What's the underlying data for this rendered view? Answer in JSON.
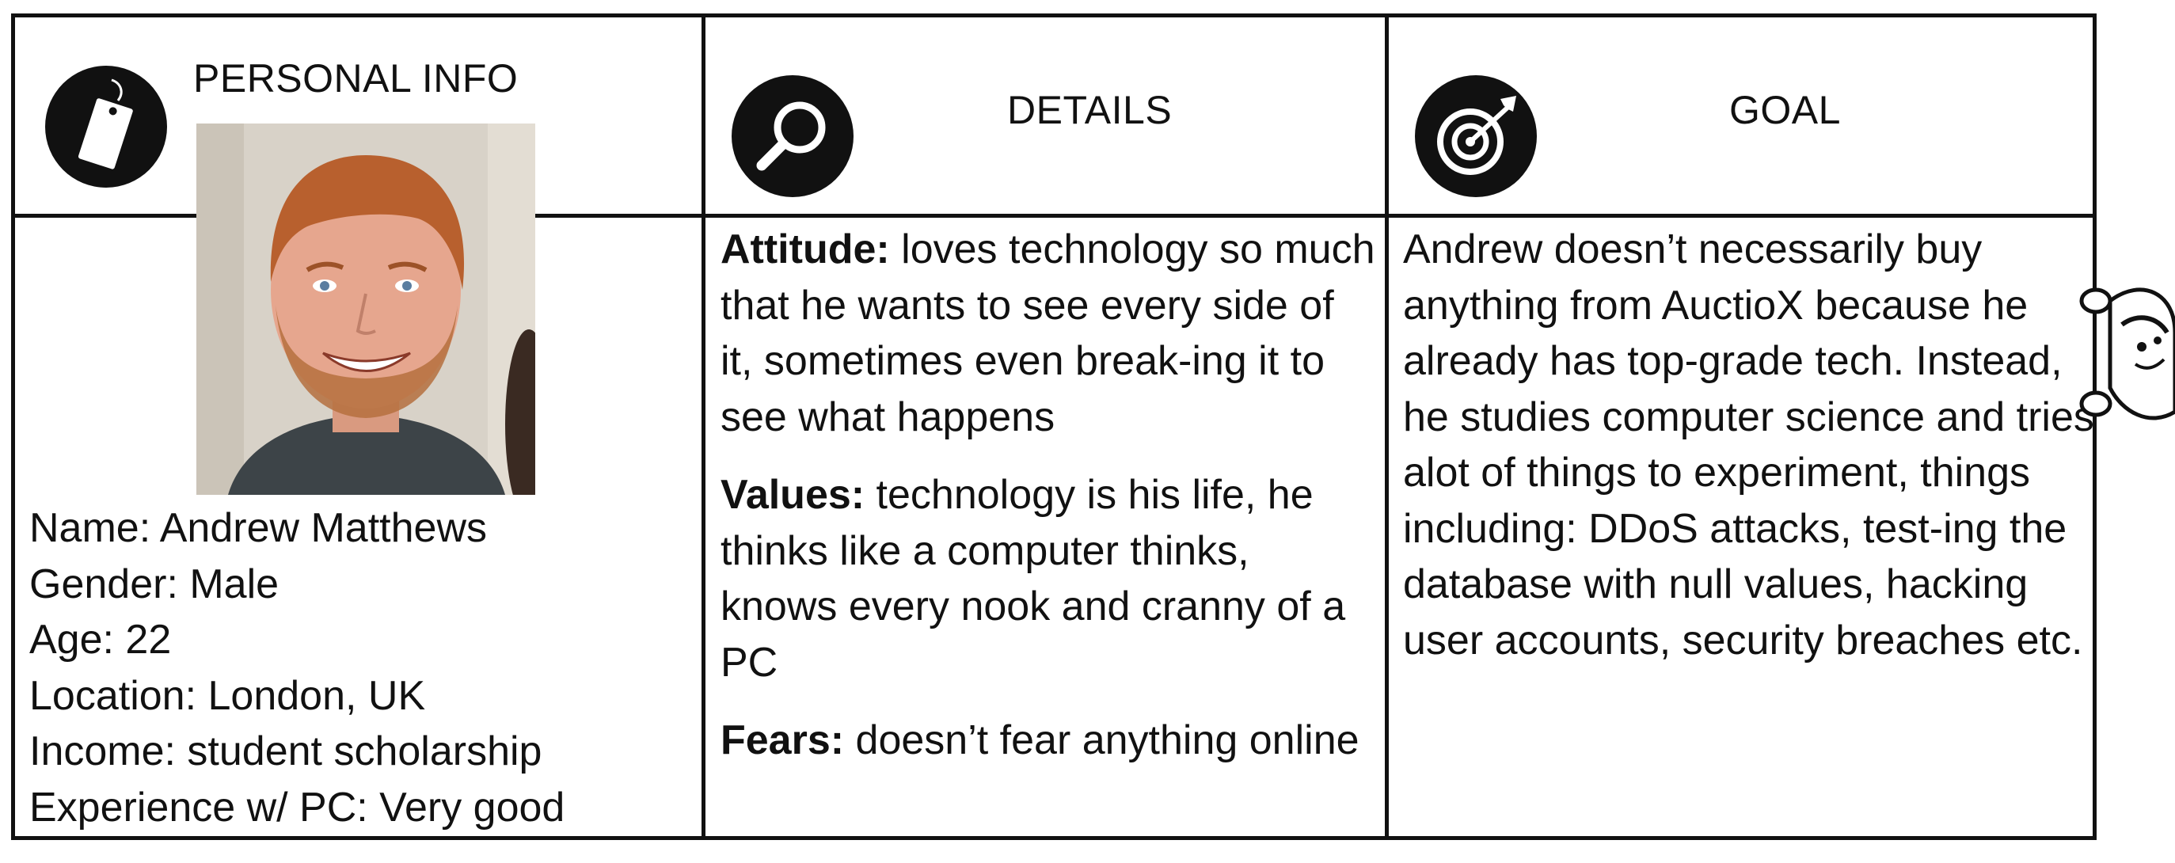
{
  "personal_info": {
    "heading": "PERSONAL INFO",
    "icon": "tag-icon",
    "fields": [
      "Name: Andrew Matthews",
      "Gender: Male",
      "Age: 22",
      "Location: London, UK",
      "Income: student scholarship",
      "Experience w/ PC: Very good"
    ]
  },
  "details": {
    "heading": "DETAILS",
    "icon": "magnifier-icon",
    "attitude_label": "Attitude:",
    "attitude_text": " loves technology so much that he wants to see every side of it, sometimes even break-ing it to see what happens",
    "values_label": "Values:",
    "values_text": " technology is his life, he thinks like a computer thinks, knows every nook and cranny of a PC",
    "fears_label": "Fears:",
    "fears_text": " doesn’t fear anything online"
  },
  "goal": {
    "heading": "GOAL",
    "icon": "target-icon",
    "text": "Andrew doesn’t necessarily buy anything from AuctioX because he already has top-grade tech. Instead, he studies computer science and tries alot of things to experiment, things including: DDoS attacks, test-ing the database with null values, hacking user accounts, security breaches etc."
  },
  "colors": {
    "ink": "#111111",
    "background": "#ffffff"
  }
}
